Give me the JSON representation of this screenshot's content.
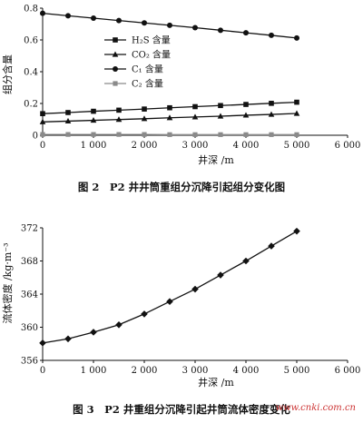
{
  "chart_data": [
    {
      "type": "line",
      "xlabel": "井深 /m",
      "ylabel": "组分含量",
      "xlim": [
        0,
        6000
      ],
      "ylim": [
        0,
        0.8
      ],
      "x_ticks": [
        0,
        1000,
        2000,
        3000,
        4000,
        5000,
        6000
      ],
      "x_tick_labels": [
        "0",
        "1 000",
        "2 000",
        "3 000",
        "4 000",
        "5 000",
        "6 000"
      ],
      "y_ticks": [
        0,
        0.2,
        0.4,
        0.6,
        0.8
      ],
      "y_tick_labels": [
        "0",
        "0.2",
        "0.4",
        "0.6",
        "0.8"
      ],
      "grid": false,
      "legend_position": "center-left",
      "series": [
        {
          "name": "H₂S 含量",
          "marker": "square",
          "x": [
            0,
            500,
            1000,
            1500,
            2000,
            2500,
            3000,
            3500,
            4000,
            4500,
            5000
          ],
          "values": [
            0.136,
            0.143,
            0.151,
            0.158,
            0.165,
            0.173,
            0.18,
            0.187,
            0.194,
            0.201,
            0.208
          ]
        },
        {
          "name": "CO₂ 含量",
          "marker": "triangle",
          "x": [
            0,
            500,
            1000,
            1500,
            2000,
            2500,
            3000,
            3500,
            4000,
            4500,
            5000
          ],
          "values": [
            0.084,
            0.089,
            0.094,
            0.099,
            0.104,
            0.11,
            0.115,
            0.12,
            0.126,
            0.131,
            0.137
          ]
        },
        {
          "name": "C₁ 含量",
          "marker": "circle",
          "x": [
            0,
            500,
            1000,
            1500,
            2000,
            2500,
            3000,
            3500,
            4000,
            4500,
            5000
          ],
          "values": [
            0.768,
            0.752,
            0.737,
            0.722,
            0.707,
            0.692,
            0.677,
            0.661,
            0.645,
            0.629,
            0.612
          ]
        },
        {
          "name": "C₂ 含量",
          "marker": "square-gray",
          "x": [
            0,
            500,
            1000,
            1500,
            2000,
            2500,
            3000,
            3500,
            4000,
            4500,
            5000
          ],
          "values": [
            0.005,
            0.005,
            0.005,
            0.005,
            0.005,
            0.004,
            0.004,
            0.004,
            0.004,
            0.004,
            0.004
          ]
        }
      ],
      "caption": "图 2　P2 井井筒重组分沉降引起组分变化图"
    },
    {
      "type": "line",
      "xlabel": "井深 /m",
      "ylabel": "流体密度 /kg·m⁻³",
      "xlim": [
        0,
        6000
      ],
      "ylim": [
        356,
        372
      ],
      "x_ticks": [
        0,
        1000,
        2000,
        3000,
        4000,
        5000,
        6000
      ],
      "x_tick_labels": [
        "0",
        "1 000",
        "2 000",
        "3 000",
        "4 000",
        "5 000",
        "6 000"
      ],
      "y_ticks": [
        356,
        360,
        364,
        368,
        372
      ],
      "y_tick_labels": [
        "356",
        "360",
        "364",
        "368",
        "372"
      ],
      "grid": false,
      "series": [
        {
          "marker": "diamond",
          "x": [
            0,
            500,
            1000,
            1500,
            2000,
            2500,
            3000,
            3500,
            4000,
            4500,
            5000
          ],
          "values": [
            358.1,
            358.6,
            359.4,
            360.3,
            361.6,
            363.1,
            364.6,
            366.3,
            368.0,
            369.8,
            371.6
          ]
        }
      ],
      "caption": "图 3　P2 井重组分沉降引起井筒流体密度变化"
    }
  ],
  "watermark": "www.cnki.com.cn"
}
